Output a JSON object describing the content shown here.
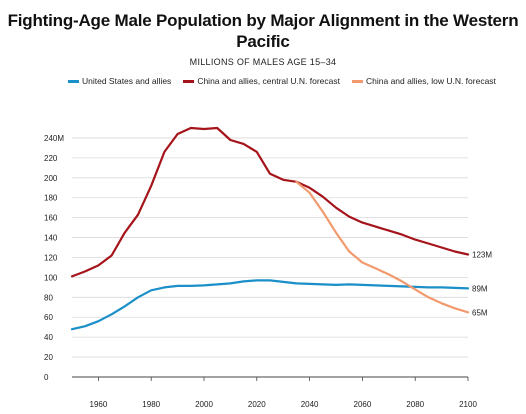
{
  "chart_data": {
    "type": "line",
    "title": "Fighting-Age Male Population by Major Alignment in the Western Pacific",
    "subtitle": "MILLIONS OF MALES AGE 15–34",
    "xlabel": "",
    "ylabel": "",
    "xlim": [
      1950,
      2100
    ],
    "ylim": [
      0,
      250
    ],
    "x_ticks": [
      1960,
      1980,
      2000,
      2020,
      2040,
      2060,
      2080,
      2100
    ],
    "y_ticks": [
      {
        "value": 0,
        "label": "0"
      },
      {
        "value": 20,
        "label": "20"
      },
      {
        "value": 40,
        "label": "40"
      },
      {
        "value": 60,
        "label": "60"
      },
      {
        "value": 80,
        "label": "80"
      },
      {
        "value": 100,
        "label": "100"
      },
      {
        "value": 120,
        "label": "120"
      },
      {
        "value": 140,
        "label": "140"
      },
      {
        "value": 160,
        "label": "160"
      },
      {
        "value": 180,
        "label": "180"
      },
      {
        "value": 200,
        "label": "200"
      },
      {
        "value": 220,
        "label": "220"
      },
      {
        "value": 240,
        "label": "240M"
      }
    ],
    "grid": true,
    "legend_position": "top",
    "series": [
      {
        "name": "United States and allies",
        "color": "#1a8fc8",
        "end_label": "89M",
        "points": [
          [
            1950,
            48
          ],
          [
            1955,
            51
          ],
          [
            1960,
            56
          ],
          [
            1965,
            63
          ],
          [
            1970,
            71
          ],
          [
            1975,
            80
          ],
          [
            1980,
            87
          ],
          [
            1985,
            90
          ],
          [
            1990,
            91.5
          ],
          [
            1995,
            91.5
          ],
          [
            2000,
            92
          ],
          [
            2005,
            93
          ],
          [
            2010,
            94
          ],
          [
            2015,
            96
          ],
          [
            2020,
            97
          ],
          [
            2025,
            97
          ],
          [
            2030,
            95.5
          ],
          [
            2035,
            94
          ],
          [
            2040,
            93.5
          ],
          [
            2045,
            93
          ],
          [
            2050,
            92.5
          ],
          [
            2055,
            93
          ],
          [
            2060,
            92.5
          ],
          [
            2065,
            92
          ],
          [
            2070,
            91.5
          ],
          [
            2075,
            91
          ],
          [
            2080,
            90.5
          ],
          [
            2085,
            90
          ],
          [
            2090,
            90
          ],
          [
            2095,
            89.5
          ],
          [
            2100,
            89
          ]
        ]
      },
      {
        "name": "China and allies, central U.N. forecast",
        "color": "#a5141a",
        "end_label": "123M",
        "points": [
          [
            1950,
            101
          ],
          [
            1955,
            106
          ],
          [
            1960,
            112
          ],
          [
            1965,
            122
          ],
          [
            1970,
            145
          ],
          [
            1975,
            163
          ],
          [
            1980,
            192
          ],
          [
            1985,
            226
          ],
          [
            1990,
            244
          ],
          [
            1995,
            250
          ],
          [
            2000,
            249
          ],
          [
            2005,
            250
          ],
          [
            2010,
            238
          ],
          [
            2015,
            234
          ],
          [
            2020,
            226
          ],
          [
            2025,
            204
          ],
          [
            2030,
            198
          ],
          [
            2035,
            196
          ],
          [
            2040,
            190
          ],
          [
            2045,
            181
          ],
          [
            2050,
            170
          ],
          [
            2055,
            161
          ],
          [
            2060,
            155
          ],
          [
            2065,
            151
          ],
          [
            2070,
            147
          ],
          [
            2075,
            143
          ],
          [
            2080,
            138
          ],
          [
            2085,
            134
          ],
          [
            2090,
            130
          ],
          [
            2095,
            126
          ],
          [
            2100,
            123
          ]
        ]
      },
      {
        "name": "China and allies, low U.N. forecast",
        "color": "#f29a6e",
        "end_label": "65M",
        "points": [
          [
            2035,
            196
          ],
          [
            2040,
            185
          ],
          [
            2045,
            166
          ],
          [
            2050,
            145
          ],
          [
            2055,
            126
          ],
          [
            2060,
            115
          ],
          [
            2065,
            109
          ],
          [
            2070,
            103
          ],
          [
            2075,
            96
          ],
          [
            2080,
            88
          ],
          [
            2085,
            80
          ],
          [
            2090,
            74
          ],
          [
            2095,
            69
          ],
          [
            2100,
            65
          ]
        ]
      }
    ]
  }
}
